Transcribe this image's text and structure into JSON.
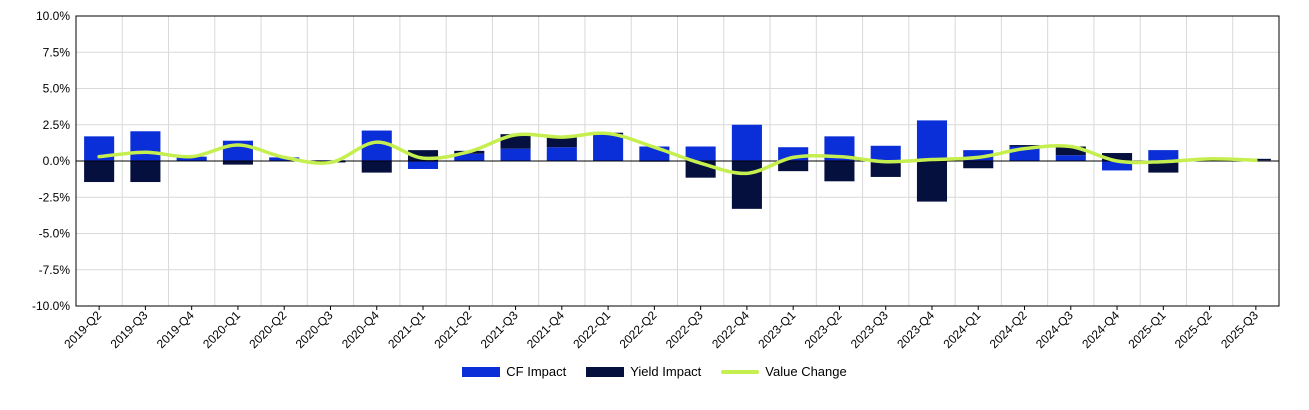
{
  "chart_data": {
    "type": "bar",
    "stacked": true,
    "title": "",
    "xlabel": "",
    "ylabel": "",
    "ylim": [
      -10,
      10
    ],
    "y_ticks": [
      10,
      7.5,
      5,
      2.5,
      0,
      -2.5,
      -5,
      -7.5,
      -10
    ],
    "y_tick_labels": [
      "10.0%",
      "7.5%",
      "5.0%",
      "2.5%",
      "0.0%",
      "-2.5%",
      "-5.0%",
      "-7.5%",
      "-10.0%"
    ],
    "grid": true,
    "legend_position": "bottom-center",
    "categories": [
      "2019-Q2",
      "2019-Q3",
      "2019-Q4",
      "2020-Q1",
      "2020-Q2",
      "2020-Q3",
      "2020-Q4",
      "2021-Q1",
      "2021-Q2",
      "2021-Q3",
      "2021-Q4",
      "2022-Q1",
      "2022-Q2",
      "2022-Q3",
      "2022-Q4",
      "2023-Q1",
      "2023-Q2",
      "2023-Q3",
      "2023-Q4",
      "2024-Q1",
      "2024-Q2",
      "2024-Q3",
      "2024-Q4",
      "2025-Q1",
      "2025-Q2",
      "2025-Q3"
    ],
    "series": [
      {
        "name": "CF Impact",
        "kind": "bar",
        "color": "#0a2ed8",
        "values": [
          1.7,
          2.05,
          0.3,
          1.4,
          0.25,
          0.05,
          2.1,
          -0.55,
          0.5,
          0.85,
          0.95,
          1.85,
          1.0,
          1.0,
          2.5,
          0.95,
          1.7,
          1.05,
          2.8,
          0.75,
          1.0,
          0.4,
          -0.65,
          0.75,
          0.1,
          0.05
        ]
      },
      {
        "name": "Yield Impact",
        "kind": "bar",
        "color": "#06103f",
        "values": [
          -1.45,
          -1.45,
          0.0,
          -0.25,
          0.0,
          -0.1,
          -0.8,
          0.75,
          0.2,
          1.0,
          0.7,
          0.1,
          -0.05,
          -1.15,
          -3.3,
          -0.7,
          -1.4,
          -1.1,
          -2.8,
          -0.5,
          0.1,
          0.6,
          0.55,
          -0.8,
          0.0,
          0.1
        ]
      },
      {
        "name": "Value Change",
        "kind": "line",
        "color": "#c5ee4f",
        "values": [
          0.3,
          0.6,
          0.3,
          1.1,
          0.25,
          -0.1,
          1.3,
          0.2,
          0.65,
          1.8,
          1.65,
          1.9,
          0.95,
          -0.15,
          -0.85,
          0.25,
          0.3,
          -0.05,
          0.1,
          0.25,
          0.85,
          1.0,
          0.0,
          -0.05,
          0.15,
          0.05
        ]
      }
    ]
  }
}
